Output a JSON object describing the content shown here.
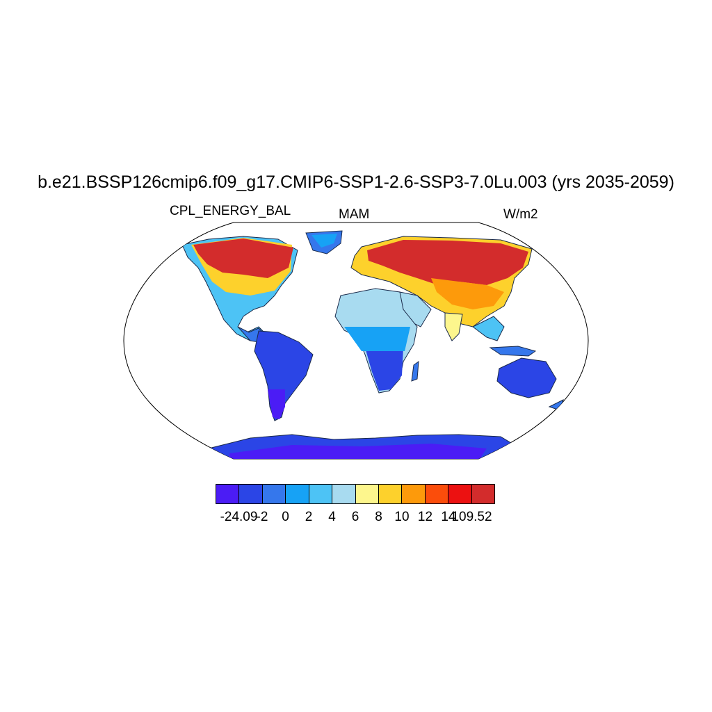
{
  "title": "b.e21.BSSP126cmip6.f09_g17.CMIP6-SSP1-2.6-SSP3-7.0Lu.003 (yrs 2035-2059)",
  "subtitle_left": "CPL_ENERGY_BAL",
  "subtitle_center": "MAM",
  "subtitle_right": "W/m2",
  "projection": "Robinson",
  "colorbar": {
    "colors": [
      "#4b1cf5",
      "#2b45e6",
      "#3577ec",
      "#17a2f5",
      "#4dc3f5",
      "#a8dbf0",
      "#fdf68d",
      "#fdd12c",
      "#fd9a0b",
      "#fb4d0b",
      "#ec1111",
      "#d32c2c"
    ],
    "labels": [
      "-24.09",
      "-2",
      "0",
      "2",
      "4",
      "6",
      "8",
      "10",
      "12",
      "14",
      "109.52"
    ]
  },
  "regions": [
    {
      "name": "North America",
      "colors": [
        "red",
        "orange",
        "yellow",
        "light-blue"
      ]
    },
    {
      "name": "South America",
      "colors": [
        "blue",
        "dark-blue"
      ]
    },
    {
      "name": "Greenland",
      "colors": [
        "light-blue"
      ]
    },
    {
      "name": "Europe/Asia",
      "colors": [
        "red",
        "orange",
        "yellow"
      ]
    },
    {
      "name": "Africa",
      "colors": [
        "light-blue",
        "blue",
        "yellow"
      ]
    },
    {
      "name": "Australia",
      "colors": [
        "blue",
        "dark-blue"
      ]
    },
    {
      "name": "Antarctica",
      "colors": [
        "blue",
        "dark-blue"
      ]
    }
  ]
}
